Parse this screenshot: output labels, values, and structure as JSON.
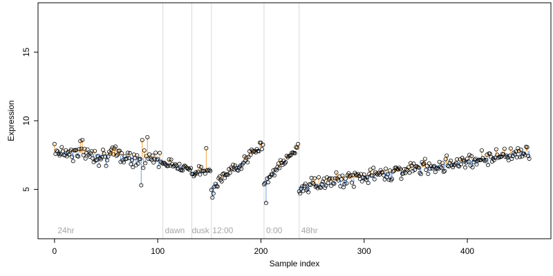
{
  "chart_data": {
    "type": "scatter",
    "xlabel": "Sample index",
    "ylabel": "Expression",
    "xlim": [
      -16,
      481
    ],
    "ylim": [
      1.4,
      18.6
    ],
    "x_ticks": [
      0,
      100,
      200,
      300,
      400
    ],
    "y_ticks": [
      5,
      10,
      15
    ],
    "colors": {
      "above_trend": "#f2a23a",
      "below_trend": "#6f9ddb",
      "boundary": "#d9d9d9",
      "region_label": "#a6a6a6"
    },
    "boundaries": [
      105,
      133,
      152,
      203,
      237
    ],
    "region_labels": [
      {
        "text": "24hr",
        "x": 3
      },
      {
        "text": "dawn",
        "x": 107
      },
      {
        "text": "dusk",
        "x": 133
      },
      {
        "text": "12:00",
        "x": 153
      },
      {
        "text": "0:00",
        "x": 205
      },
      {
        "text": "48hr",
        "x": 239
      }
    ],
    "segments": [
      {
        "start": 0,
        "end": 104,
        "trend_start": 7.8,
        "trend_end": 7.2,
        "noise": 0.6
      },
      {
        "start": 105,
        "end": 132,
        "trend_start": 7.0,
        "trend_end": 6.5,
        "noise": 0.25
      },
      {
        "start": 133,
        "end": 151,
        "trend_start": 6.2,
        "trend_end": 6.4,
        "noise": 0.3
      },
      {
        "start": 152,
        "end": 202,
        "trend_start": 5.2,
        "trend_end": 8.2,
        "noise": 0.35
      },
      {
        "start": 203,
        "end": 236,
        "trend_start": 5.6,
        "trend_end": 8.0,
        "noise": 0.3
      },
      {
        "start": 237,
        "end": 460,
        "trend_start": 5.2,
        "trend_end": 7.8,
        "noise": 0.45
      }
    ],
    "highlighted_points": [
      {
        "x": 0,
        "y": 8.3
      },
      {
        "x": 27,
        "y": 8.6
      },
      {
        "x": 85,
        "y": 8.6
      },
      {
        "x": 90,
        "y": 8.8
      },
      {
        "x": 84,
        "y": 5.3
      },
      {
        "x": 147,
        "y": 8.0
      },
      {
        "x": 153,
        "y": 4.4
      },
      {
        "x": 154,
        "y": 4.7
      },
      {
        "x": 205,
        "y": 4.0
      },
      {
        "x": 236,
        "y": 8.3
      },
      {
        "x": 238,
        "y": 4.7
      },
      {
        "x": 200,
        "y": 8.4
      },
      {
        "x": 457,
        "y": 8.1
      }
    ]
  }
}
